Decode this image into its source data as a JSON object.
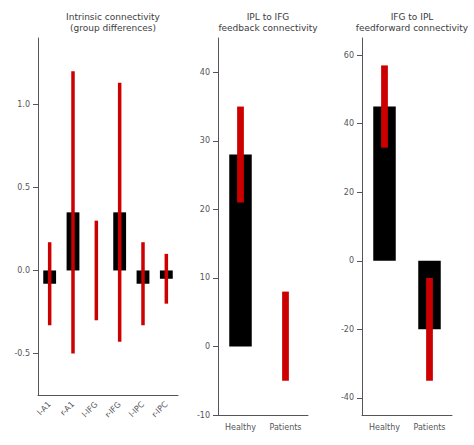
{
  "chart_data": [
    {
      "type": "bar",
      "title": "Intrinsic connectivity\n(group differences)",
      "categories": [
        "l-A1",
        "r-A1",
        "l-IFG",
        "r-IFG",
        "l-IPC",
        "r-IPC"
      ],
      "values": [
        -0.08,
        0.35,
        0.0,
        0.35,
        -0.08,
        -0.05
      ],
      "error_low": [
        0.25,
        0.85,
        0.3,
        0.78,
        0.25,
        0.15
      ],
      "error_high": [
        0.25,
        0.85,
        0.3,
        0.78,
        0.25,
        0.15
      ],
      "color": "black",
      "error_color": "#cc0000",
      "ylim": [
        -0.75,
        1.4
      ],
      "yticks": [
        -0.5,
        {
          "value": 0,
          "label": "0.0"
        },
        0.5,
        {
          "value": 1.0,
          "label": "1.0"
        }
      ],
      "grid": false
    },
    {
      "type": "bar",
      "title": "IPL to IFG\nfeedback connectivity",
      "categories": [
        "Healthy",
        "Patients"
      ],
      "values": [
        28,
        0
      ],
      "error_low": [
        7,
        5
      ],
      "error_high": [
        7,
        8
      ],
      "color": "black",
      "error_color": "#cc0000",
      "ylim": [
        -10,
        45
      ],
      "yticks": [
        -10,
        0,
        10,
        20,
        30,
        40
      ],
      "grid": false
    },
    {
      "type": "bar",
      "title": "IFG to IPL\nfeedforward connectivity",
      "categories": [
        "Healthy",
        "Patients"
      ],
      "values": [
        45,
        -20
      ],
      "error_low": [
        12,
        15
      ],
      "error_high": [
        12,
        15
      ],
      "color": "black",
      "error_color": "#cc0000",
      "ylim": [
        -45,
        65
      ],
      "yticks": [
        -40,
        -20,
        0,
        20,
        40,
        60
      ],
      "grid": false
    }
  ]
}
